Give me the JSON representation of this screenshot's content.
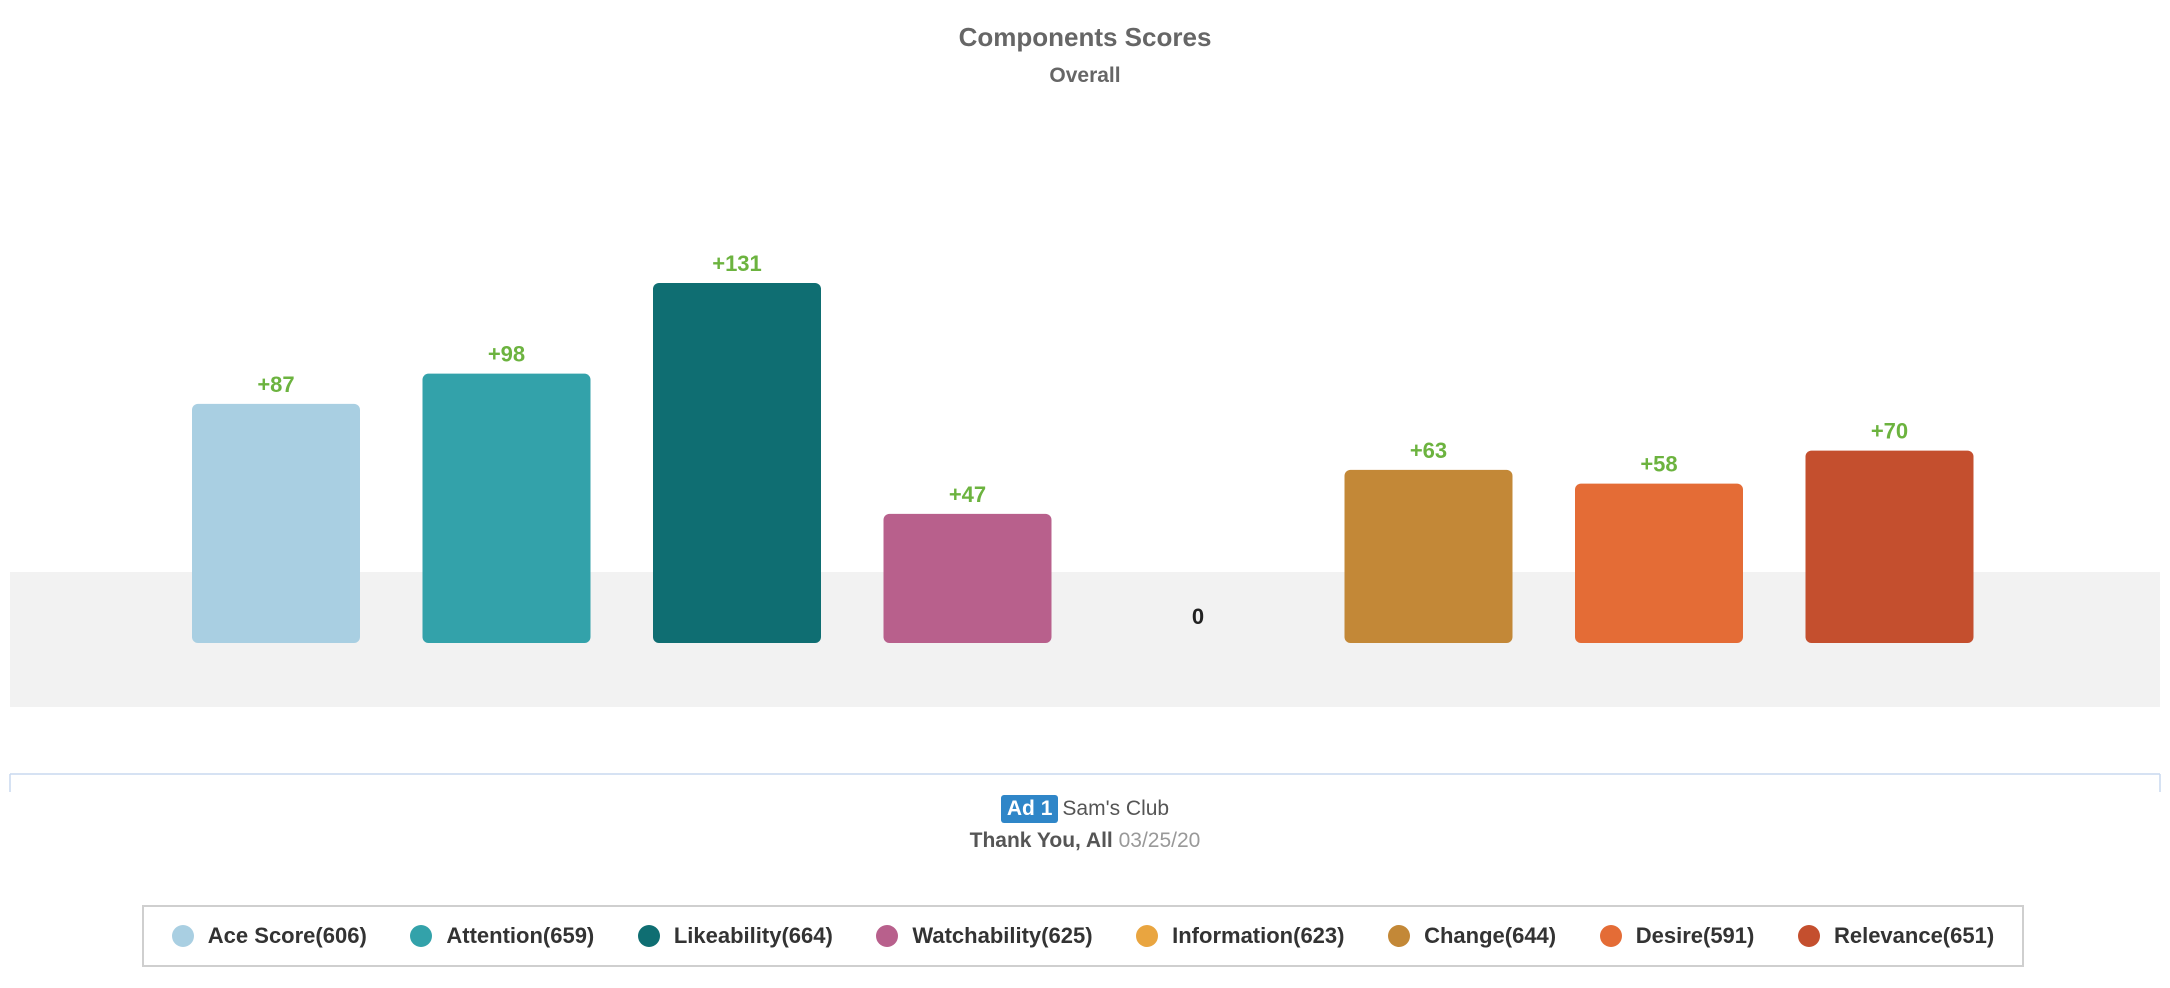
{
  "chart_data": {
    "type": "bar",
    "title": "Components Scores",
    "subtitle": "Overall",
    "categories": [
      "Ace Score",
      "Attention",
      "Likeability",
      "Watchability",
      "Information",
      "Change",
      "Desire",
      "Relevance"
    ],
    "values": [
      87,
      98,
      131,
      47,
      0,
      63,
      58,
      70
    ],
    "data_labels": [
      "+87",
      "+98",
      "+131",
      "+47",
      "0",
      "+63",
      "+58",
      "+70"
    ],
    "colors": [
      "#a9cfe2",
      "#33a2aa",
      "#0f6e72",
      "#b8608c",
      "#e9a540",
      "#c38837",
      "#e46c36",
      "#c44f2e"
    ],
    "label_color": "#6cb33f",
    "baseline_band_color": "#f2f2f2",
    "grid": false
  },
  "ad": {
    "badge": "Ad 1",
    "brand": "Sam's Club",
    "name": "Thank You, All",
    "date": "03/25/20"
  },
  "legend": [
    {
      "label": "Ace Score(606)",
      "color": "#a9cfe2",
      "icon": "legend-dot"
    },
    {
      "label": "Attention(659)",
      "color": "#33a2aa",
      "icon": "legend-dot"
    },
    {
      "label": "Likeability(664)",
      "color": "#0f6e72",
      "icon": "legend-dot"
    },
    {
      "label": "Watchability(625)",
      "color": "#b8608c",
      "icon": "legend-dot"
    },
    {
      "label": "Information(623)",
      "color": "#e9a540",
      "icon": "legend-dot"
    },
    {
      "label": "Change(644)",
      "color": "#c38837",
      "icon": "legend-dot"
    },
    {
      "label": "Desire(591)",
      "color": "#e46c36",
      "icon": "legend-dot"
    },
    {
      "label": "Relevance(651)",
      "color": "#c44f2e",
      "icon": "legend-dot"
    }
  ]
}
